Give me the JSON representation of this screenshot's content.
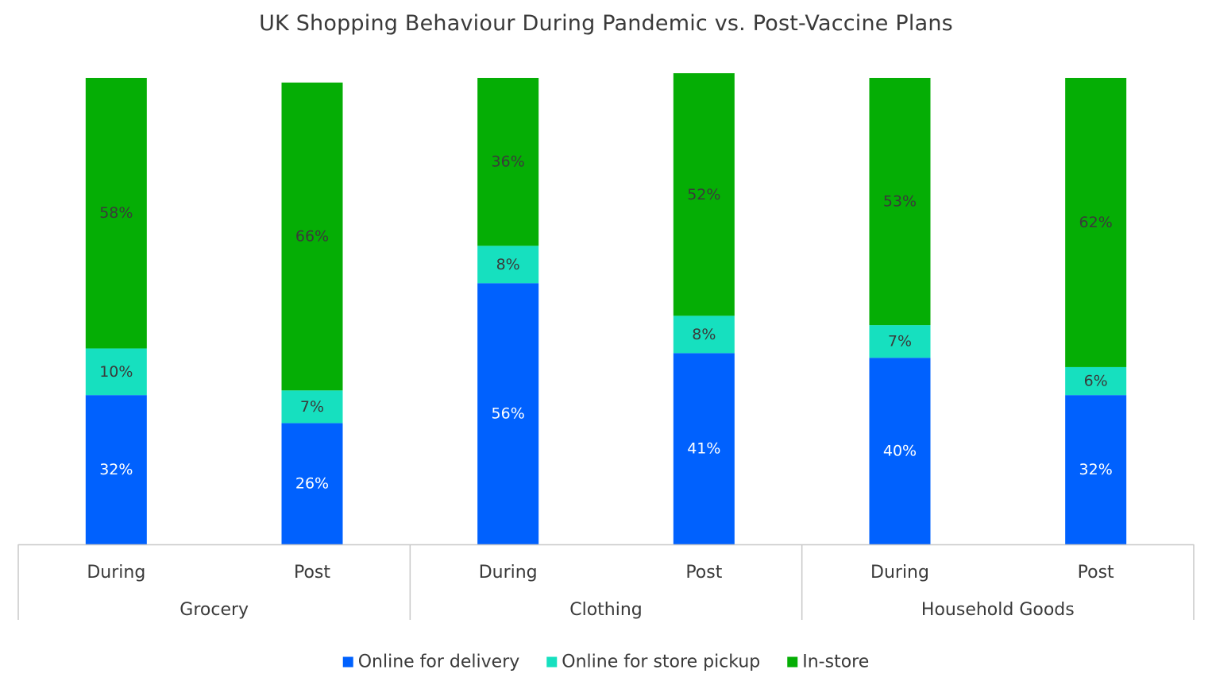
{
  "chart_data": {
    "type": "bar",
    "stacked": true,
    "normalized_percent": true,
    "title": "UK Shopping Behaviour During Pandemic vs. Post-Vaccine Plans",
    "xlabel": "",
    "ylabel": "",
    "ylim": [
      0,
      100
    ],
    "grid": false,
    "legend_position": "bottom-center",
    "groups": [
      "Grocery",
      "Clothing",
      "Household Goods"
    ],
    "categories": [
      "During",
      "Post",
      "During",
      "Post",
      "During",
      "Post"
    ],
    "series": [
      {
        "name": "Online for delivery",
        "color": "#0061fe",
        "values": [
          32,
          26,
          56,
          41,
          40,
          32
        ]
      },
      {
        "name": "Online for store pickup",
        "color": "#16e0bf",
        "values": [
          10,
          7,
          8,
          8,
          7,
          6
        ]
      },
      {
        "name": "In-store",
        "color": "#05ae05",
        "values": [
          58,
          66,
          36,
          52,
          53,
          62
        ]
      }
    ],
    "value_label_suffix": "%"
  }
}
